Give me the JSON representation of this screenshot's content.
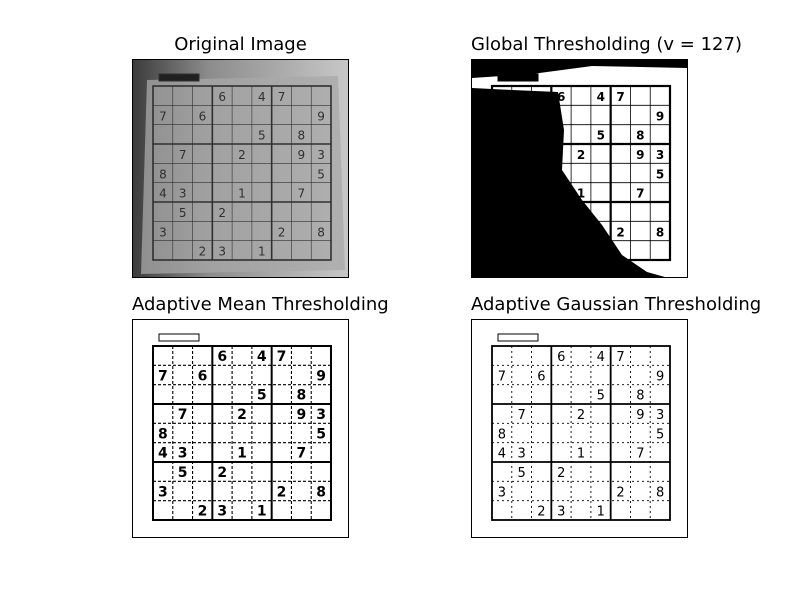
{
  "panels": [
    {
      "title": "Original Image",
      "mode": "original"
    },
    {
      "title": "Global Thresholding (v = 127)",
      "mode": "global"
    },
    {
      "title": "Adaptive Mean Thresholding",
      "mode": "mean"
    },
    {
      "title": "Adaptive Gaussian Thresholding",
      "mode": "gauss"
    }
  ],
  "sudoku": {
    "grid": [
      [
        "",
        "",
        "",
        "6",
        "",
        "4",
        "7",
        "",
        ""
      ],
      [
        "7",
        "",
        "6",
        "",
        "",
        "",
        "",
        "",
        "9"
      ],
      [
        "",
        "",
        "",
        "",
        "",
        "5",
        "",
        "8",
        ""
      ],
      [
        "",
        "7",
        "",
        "",
        "2",
        "",
        "",
        "9",
        "3"
      ],
      [
        "8",
        "",
        "",
        "",
        "",
        "",
        "",
        "",
        "5"
      ],
      [
        "4",
        "3",
        "",
        "",
        "1",
        "",
        "",
        "7",
        ""
      ],
      [
        "",
        "5",
        "",
        "2",
        "",
        "",
        "",
        "",
        ""
      ],
      [
        "3",
        "",
        "",
        "",
        "",
        "",
        "2",
        "",
        "8"
      ],
      [
        "",
        "",
        "2",
        "3",
        "",
        "1",
        "",
        "",
        ""
      ]
    ]
  },
  "colors": {
    "background": "#ffffff",
    "ink": "#000000",
    "paper_gray": "#a9a9a9"
  }
}
